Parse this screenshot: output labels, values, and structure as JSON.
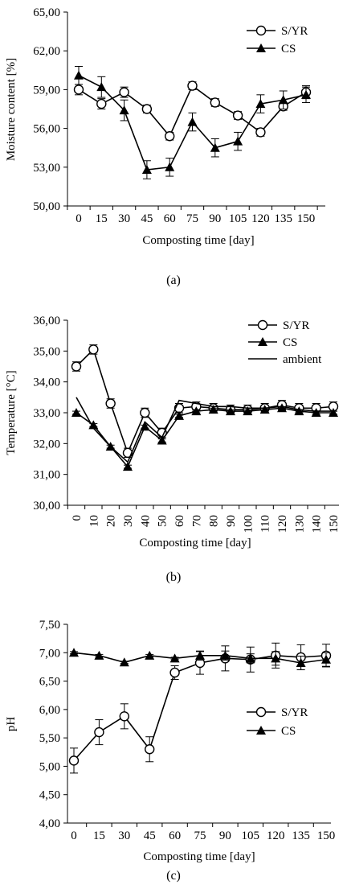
{
  "chart_data": [
    {
      "type": "line",
      "panel": "a",
      "caption": "(a)",
      "title": "",
      "xlabel": "Composting time [day]",
      "ylabel": "Moisture content [%]",
      "categories": [
        "0",
        "15",
        "30",
        "45",
        "60",
        "75",
        "90",
        "105",
        "120",
        "135",
        "150"
      ],
      "ylim": [
        50,
        65
      ],
      "yticks": [
        "50,00",
        "53,00",
        "56,00",
        "59,00",
        "62,00",
        "65,00"
      ],
      "ytick_values": [
        50,
        53,
        56,
        59,
        62,
        65
      ],
      "grid": false,
      "legend_position": "top-right",
      "series": [
        {
          "name": "S/YR",
          "marker": "open-circle",
          "values": [
            59.0,
            57.9,
            58.8,
            57.5,
            55.4,
            59.3,
            58.0,
            57.0,
            55.7,
            57.7,
            58.8
          ],
          "errors": [
            0.4,
            0.4,
            0.4,
            0.3,
            0.3,
            0.3,
            0.3,
            0.3,
            0.3,
            0.3,
            0.5
          ]
        },
        {
          "name": "CS",
          "marker": "filled-triangle",
          "values": [
            60.1,
            59.2,
            57.4,
            52.8,
            53.0,
            56.5,
            54.5,
            55.0,
            57.9,
            58.2,
            58.6
          ],
          "errors": [
            0.7,
            0.8,
            0.8,
            0.7,
            0.7,
            0.7,
            0.7,
            0.7,
            0.7,
            0.7,
            0.6
          ]
        }
      ]
    },
    {
      "type": "line",
      "panel": "b",
      "caption": "(b)",
      "title": "",
      "xlabel": "Composting time [day]",
      "ylabel": "Temperature [°C]",
      "categories": [
        "0",
        "10",
        "20",
        "30",
        "40",
        "50",
        "60",
        "70",
        "80",
        "90",
        "100",
        "110",
        "120",
        "130",
        "140",
        "150"
      ],
      "ylim": [
        30,
        36
      ],
      "yticks": [
        "30,00",
        "31,00",
        "32,00",
        "33,00",
        "34,00",
        "35,00",
        "36,00"
      ],
      "ytick_values": [
        30,
        31,
        32,
        33,
        34,
        35,
        36
      ],
      "grid": false,
      "legend_position": "top-right",
      "series": [
        {
          "name": "S/YR",
          "marker": "open-circle",
          "values": [
            34.5,
            35.05,
            33.3,
            31.7,
            33.0,
            32.35,
            33.15,
            33.2,
            33.15,
            33.1,
            33.1,
            33.15,
            33.25,
            33.15,
            33.15,
            33.2
          ],
          "errors": [
            0.15,
            0.15,
            0.15,
            0.15,
            0.15,
            0.15,
            0.15,
            0.15,
            0.15,
            0.15,
            0.15,
            0.15,
            0.15,
            0.15,
            0.15,
            0.15
          ]
        },
        {
          "name": "CS",
          "marker": "filled-triangle",
          "values": [
            33.0,
            32.6,
            31.9,
            31.25,
            32.55,
            32.1,
            32.9,
            33.05,
            33.1,
            33.05,
            33.05,
            33.1,
            33.15,
            33.05,
            33.0,
            33.0
          ],
          "errors": [
            0.05,
            0.05,
            0.05,
            0.05,
            0.05,
            0.05,
            0.05,
            0.05,
            0.05,
            0.05,
            0.05,
            0.05,
            0.05,
            0.05,
            0.05,
            0.05
          ]
        },
        {
          "name": "ambient",
          "marker": "none",
          "values": [
            33.5,
            32.5,
            31.9,
            31.4,
            32.7,
            32.2,
            33.4,
            33.3,
            33.2,
            33.2,
            33.15,
            33.15,
            33.2,
            33.1,
            33.05,
            33.05
          ]
        }
      ]
    },
    {
      "type": "line",
      "panel": "c",
      "caption": "(c)",
      "title": "",
      "xlabel": "Composting time [day]",
      "ylabel": "pH",
      "categories": [
        "0",
        "15",
        "30",
        "45",
        "60",
        "75",
        "90",
        "105",
        "120",
        "135",
        "150"
      ],
      "ylim": [
        4,
        7.5
      ],
      "yticks": [
        "4,00",
        "4,50",
        "5,00",
        "5,50",
        "6,00",
        "6,50",
        "7,00",
        "7,50"
      ],
      "ytick_values": [
        4,
        4.5,
        5,
        5.5,
        6,
        6.5,
        7,
        7.5
      ],
      "grid": false,
      "legend_position": "center-right",
      "series": [
        {
          "name": "S/YR",
          "marker": "open-circle",
          "values": [
            5.1,
            5.6,
            5.88,
            5.3,
            6.65,
            6.82,
            6.9,
            6.88,
            6.95,
            6.92,
            6.95
          ],
          "errors": [
            0.22,
            0.22,
            0.22,
            0.22,
            0.12,
            0.2,
            0.22,
            0.22,
            0.22,
            0.22,
            0.2
          ]
        },
        {
          "name": "CS",
          "marker": "filled-triangle",
          "values": [
            7.0,
            6.95,
            6.83,
            6.95,
            6.9,
            6.95,
            6.95,
            6.9,
            6.9,
            6.82,
            6.88
          ],
          "errors": [
            0.02,
            0.02,
            0.02,
            0.02,
            0.02,
            0.08,
            0.08,
            0.08,
            0.12,
            0.12,
            0.12
          ]
        }
      ]
    }
  ]
}
